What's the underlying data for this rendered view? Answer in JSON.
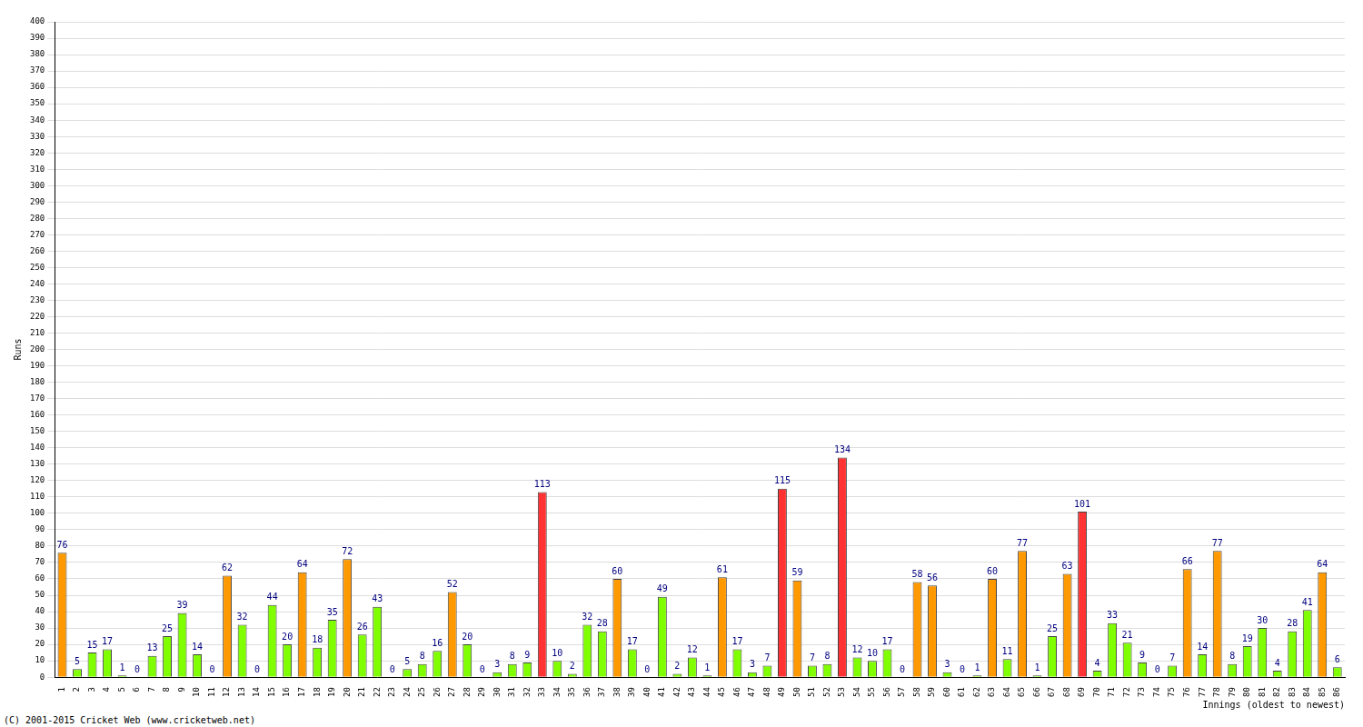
{
  "chart_data": {
    "type": "bar",
    "x_label": "Innings (oldest to newest)",
    "y_label": "Runs",
    "annotations": [
      "(C) 2001-2015 Cricket Web (www.cricketweb.net)"
    ],
    "categories": [
      "1",
      "2",
      "3",
      "4",
      "5",
      "6",
      "7",
      "8",
      "9",
      "10",
      "11",
      "12",
      "13",
      "14",
      "15",
      "16",
      "17",
      "18",
      "19",
      "20",
      "21",
      "22",
      "23",
      "24",
      "25",
      "26",
      "27",
      "28",
      "29",
      "30",
      "31",
      "32",
      "33",
      "34",
      "35",
      "36",
      "37",
      "38",
      "39",
      "40",
      "41",
      "42",
      "43",
      "44",
      "45",
      "46",
      "47",
      "48",
      "49",
      "50",
      "51",
      "52",
      "53",
      "54",
      "55",
      "56",
      "57",
      "58",
      "59",
      "60",
      "61",
      "62",
      "63",
      "64",
      "65",
      "66",
      "67",
      "68",
      "69",
      "70",
      "71",
      "72",
      "73",
      "74",
      "75",
      "76",
      "77",
      "78",
      "79",
      "80",
      "81",
      "82",
      "83",
      "84",
      "85",
      "86"
    ],
    "values": [
      76,
      5,
      15,
      17,
      1,
      0,
      13,
      25,
      39,
      14,
      0,
      62,
      32,
      0,
      44,
      20,
      64,
      18,
      35,
      72,
      26,
      43,
      0,
      5,
      8,
      16,
      52,
      20,
      0,
      3,
      8,
      9,
      113,
      10,
      2,
      32,
      28,
      60,
      17,
      0,
      49,
      2,
      12,
      1,
      61,
      17,
      3,
      7,
      115,
      59,
      7,
      8,
      134,
      12,
      10,
      17,
      0,
      58,
      56,
      3,
      0,
      1,
      60,
      11,
      77,
      1,
      25,
      63,
      101,
      4,
      33,
      21,
      9,
      0,
      7,
      66,
      14,
      77,
      8,
      19,
      30,
      4,
      28,
      41,
      64,
      6
    ],
    "colors": [
      "#ff9900",
      "#80ff00",
      "#80ff00",
      "#80ff00",
      "#80ff00",
      "#80ff00",
      "#80ff00",
      "#80ff00",
      "#80ff00",
      "#80ff00",
      "#80ff00",
      "#ff9900",
      "#80ff00",
      "#80ff00",
      "#80ff00",
      "#80ff00",
      "#ff9900",
      "#80ff00",
      "#80ff00",
      "#ff9900",
      "#80ff00",
      "#80ff00",
      "#80ff00",
      "#80ff00",
      "#80ff00",
      "#80ff00",
      "#ff9900",
      "#80ff00",
      "#80ff00",
      "#80ff00",
      "#80ff00",
      "#80ff00",
      "#ff3333",
      "#80ff00",
      "#80ff00",
      "#80ff00",
      "#80ff00",
      "#ff9900",
      "#80ff00",
      "#80ff00",
      "#80ff00",
      "#80ff00",
      "#80ff00",
      "#80ff00",
      "#ff9900",
      "#80ff00",
      "#80ff00",
      "#80ff00",
      "#ff3333",
      "#ff9900",
      "#80ff00",
      "#80ff00",
      "#ff3333",
      "#80ff00",
      "#80ff00",
      "#80ff00",
      "#80ff00",
      "#ff9900",
      "#ff9900",
      "#80ff00",
      "#80ff00",
      "#80ff00",
      "#ff9900",
      "#80ff00",
      "#ff9900",
      "#80ff00",
      "#80ff00",
      "#ff9900",
      "#ff3333",
      "#80ff00",
      "#80ff00",
      "#80ff00",
      "#80ff00",
      "#80ff00",
      "#80ff00",
      "#ff9900",
      "#80ff00",
      "#ff9900",
      "#80ff00",
      "#80ff00",
      "#80ff00",
      "#80ff00",
      "#80ff00",
      "#80ff00",
      "#ff9900",
      "#80ff00"
    ],
    "ylim": [
      0,
      400
    ],
    "yticks": [
      0,
      10,
      20,
      30,
      40,
      50,
      60,
      70,
      80,
      90,
      100,
      110,
      120,
      130,
      140,
      150,
      160,
      170,
      180,
      190,
      200,
      210,
      220,
      230,
      240,
      250,
      260,
      270,
      280,
      290,
      300,
      310,
      320,
      330,
      340,
      350,
      360,
      370,
      380,
      390,
      400
    ],
    "grid": true,
    "data_labels": true
  }
}
